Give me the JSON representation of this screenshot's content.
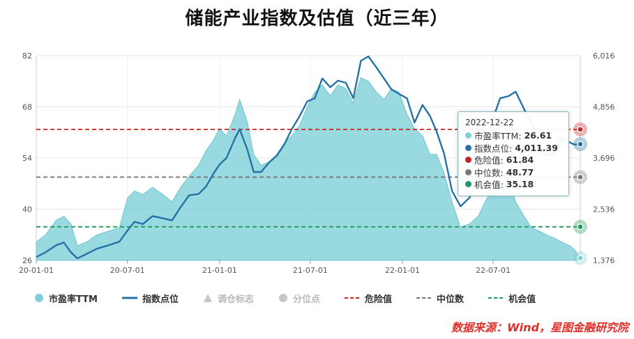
{
  "title": "储能产业指数及估值（近三年）",
  "source": "数据来源：Wind，星图金融研究院",
  "chart_data": {
    "type": "area",
    "title": "储能产业指数及估值（近三年）",
    "x_ticks": [
      "20-01-01",
      "20-07-01",
      "21-01-01",
      "21-07-01",
      "22-01-01",
      "22-07-01"
    ],
    "x_range": [
      "2020-01-01",
      "2022-12-22"
    ],
    "y_left": {
      "ticks": [
        "26",
        "40",
        "54",
        "68",
        "82"
      ],
      "range": [
        26,
        82
      ]
    },
    "y_right": {
      "ticks": [
        "1,376",
        "2,536",
        "3,696",
        "4,856",
        "6,016"
      ],
      "range": [
        1376,
        6016
      ]
    },
    "grid": true,
    "x": [
      "2020-01-01",
      "2020-01-20",
      "2020-02-10",
      "2020-02-25",
      "2020-03-10",
      "2020-03-23",
      "2020-04-10",
      "2020-05-01",
      "2020-05-25",
      "2020-06-15",
      "2020-07-01",
      "2020-07-15",
      "2020-08-01",
      "2020-08-20",
      "2020-09-10",
      "2020-09-28",
      "2020-10-15",
      "2020-11-01",
      "2020-11-20",
      "2020-12-05",
      "2020-12-20",
      "2021-01-01",
      "2021-01-15",
      "2021-02-01",
      "2021-02-10",
      "2021-02-25",
      "2021-03-10",
      "2021-03-25",
      "2021-04-10",
      "2021-04-25",
      "2021-05-10",
      "2021-05-25",
      "2021-06-10",
      "2021-06-25",
      "2021-07-10",
      "2021-07-25",
      "2021-08-10",
      "2021-08-25",
      "2021-09-10",
      "2021-09-25",
      "2021-10-10",
      "2021-10-25",
      "2021-11-10",
      "2021-11-25",
      "2021-12-10",
      "2021-12-25",
      "2022-01-10",
      "2022-01-25",
      "2022-02-10",
      "2022-02-25",
      "2022-03-10",
      "2022-03-25",
      "2022-04-10",
      "2022-04-27",
      "2022-05-15",
      "2022-06-01",
      "2022-06-15",
      "2022-07-01",
      "2022-07-15",
      "2022-08-01",
      "2022-08-15",
      "2022-09-01",
      "2022-09-15",
      "2022-10-01",
      "2022-10-15",
      "2022-11-01",
      "2022-11-15",
      "2022-12-01",
      "2022-12-10",
      "2022-12-22"
    ],
    "series": [
      {
        "name": "市盈率TTM",
        "axis": "left",
        "color": "#7fcfd8",
        "values": [
          31,
          33,
          37,
          38,
          36,
          30,
          31,
          33,
          34,
          35,
          43,
          45,
          44,
          46,
          44,
          42,
          46,
          49,
          52,
          56,
          59,
          62,
          60,
          66,
          70,
          64,
          55,
          52,
          53,
          55,
          58,
          60,
          63,
          68,
          72,
          74,
          71,
          74,
          73,
          69,
          76,
          75,
          72,
          70,
          73,
          72,
          66,
          62,
          60,
          55,
          55,
          50,
          42,
          35,
          36,
          38,
          42,
          46,
          48,
          48,
          42,
          38,
          35,
          34,
          33,
          32,
          31,
          30,
          29,
          26.61
        ]
      },
      {
        "name": "指数点位",
        "axis": "right",
        "color": "#2472a4",
        "values": [
          1450,
          1560,
          1720,
          1780,
          1560,
          1420,
          1520,
          1640,
          1720,
          1800,
          2050,
          2250,
          2200,
          2380,
          2330,
          2280,
          2580,
          2850,
          2880,
          3050,
          3350,
          3550,
          3700,
          4150,
          4350,
          3900,
          3380,
          3380,
          3600,
          3750,
          4000,
          4350,
          4650,
          4980,
          5050,
          5500,
          5300,
          5450,
          5400,
          5050,
          5900,
          6000,
          5750,
          5500,
          5250,
          5150,
          5050,
          4500,
          4900,
          4650,
          4300,
          3800,
          2950,
          2600,
          2800,
          3200,
          3850,
          4600,
          5050,
          5100,
          5200,
          4800,
          4500,
          4000,
          3750,
          3800,
          4150,
          4050,
          4000,
          4011.39
        ]
      }
    ],
    "lines": [
      {
        "name": "危险值",
        "value": 61.84,
        "color": "#c82424"
      },
      {
        "name": "中位数",
        "value": 48.77,
        "color": "#777777"
      },
      {
        "name": "机会值",
        "value": 35.18,
        "color": "#1f9a5a"
      }
    ]
  },
  "tooltip": {
    "date": "2022-12-22",
    "rows": [
      {
        "label": "市盈率TTM:",
        "value": "26.61",
        "color": "#7fcfd8"
      },
      {
        "label": "指数点位:",
        "value": "4,011.39",
        "color": "#2472a4"
      },
      {
        "label": "危险值:",
        "value": "61.84",
        "color": "#c82424"
      },
      {
        "label": "中位数:",
        "value": "48.77",
        "color": "#777777"
      },
      {
        "label": "机会值:",
        "value": "35.18",
        "color": "#1f9a5a"
      }
    ]
  },
  "legend": {
    "pe": "市盈率TTM",
    "index": "指数点位",
    "rebalance": "调仓标志",
    "percentile": "分位点",
    "danger": "危险值",
    "median": "中位数",
    "opportunity": "机会值"
  }
}
